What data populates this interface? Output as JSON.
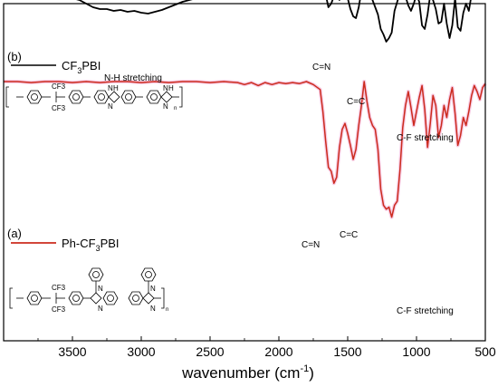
{
  "chart_data": {
    "type": "line",
    "title": "",
    "xlabel": "wavenumber (cm",
    "xlabel_sup": "-1",
    "xlabel_tail": ")",
    "ylabel": "",
    "xlim": [
      4000,
      500
    ],
    "x_reversed": true,
    "y_ticks_shown": false,
    "grid": false,
    "x_ticks": [
      3500,
      3000,
      2500,
      2000,
      1500,
      1000,
      500
    ],
    "series": [
      {
        "name": "CF3PBI",
        "panel_label": "(b)",
        "legend_main": "CF",
        "legend_sub": "3",
        "legend_tail": "PBI",
        "color": "#000000",
        "x": [
          4000,
          3900,
          3800,
          3700,
          3600,
          3500,
          3450,
          3400,
          3350,
          3300,
          3250,
          3200,
          3150,
          3100,
          3050,
          3000,
          2950,
          2900,
          2850,
          2800,
          2700,
          2600,
          2500,
          2400,
          2300,
          2200,
          2100,
          2000,
          1900,
          1800,
          1750,
          1700,
          1680,
          1660,
          1640,
          1620,
          1600,
          1580,
          1560,
          1540,
          1520,
          1500,
          1480,
          1460,
          1440,
          1420,
          1400,
          1380,
          1360,
          1340,
          1320,
          1300,
          1280,
          1260,
          1240,
          1220,
          1200,
          1180,
          1160,
          1140,
          1120,
          1100,
          1080,
          1060,
          1040,
          1020,
          1000,
          980,
          960,
          940,
          920,
          900,
          880,
          860,
          840,
          820,
          800,
          780,
          760,
          740,
          720,
          700,
          680,
          660,
          640,
          620,
          600,
          580,
          560,
          540,
          520,
          500
        ],
        "y": [
          6,
          5.6,
          5.5,
          5.2,
          4.8,
          4.2,
          4.0,
          3.6,
          3.2,
          3.0,
          3.0,
          2.8,
          2.9,
          2.7,
          2.8,
          2.6,
          2.5,
          2.7,
          2.9,
          3.2,
          3.8,
          4.2,
          4.6,
          4.8,
          5.0,
          5.2,
          5.3,
          5.5,
          5.6,
          5.8,
          5.6,
          5.4,
          5.2,
          4.6,
          3.2,
          3.6,
          4.4,
          4.6,
          4.0,
          5.2,
          5.0,
          4.2,
          3.0,
          2.2,
          2.0,
          3.2,
          5.0,
          6.2,
          5.6,
          5.0,
          4.0,
          3.2,
          2.4,
          0.8,
          0.2,
          -0.6,
          -0.2,
          0.4,
          2.8,
          3.8,
          4.8,
          5.2,
          4.4,
          3.4,
          2.8,
          3.6,
          4.6,
          3.8,
          1.2,
          0.8,
          2.4,
          4.6,
          4.0,
          3.0,
          1.4,
          1.6,
          3.6,
          1.4,
          -0.2,
          1.2,
          4.2,
          1.0,
          0.6,
          2.6,
          3.6,
          2.8,
          4.6,
          5.6,
          4.4,
          5.2,
          4.8,
          4.2
        ]
      },
      {
        "name": "Ph-CF3PBI",
        "panel_label": "(a)",
        "legend_main": "Ph-CF",
        "legend_sub": "3",
        "legend_tail": "PBI",
        "color": "#cc2b1e",
        "x": [
          4000,
          3900,
          3800,
          3700,
          3600,
          3500,
          3400,
          3300,
          3200,
          3100,
          3000,
          2900,
          2800,
          2700,
          2600,
          2500,
          2400,
          2300,
          2250,
          2200,
          2150,
          2100,
          2050,
          2000,
          1950,
          1900,
          1850,
          1800,
          1750,
          1700,
          1680,
          1660,
          1640,
          1620,
          1600,
          1580,
          1560,
          1540,
          1520,
          1500,
          1480,
          1460,
          1440,
          1420,
          1400,
          1380,
          1360,
          1340,
          1320,
          1300,
          1280,
          1260,
          1240,
          1220,
          1200,
          1180,
          1160,
          1140,
          1120,
          1100,
          1080,
          1060,
          1040,
          1020,
          1000,
          980,
          960,
          940,
          920,
          900,
          880,
          860,
          840,
          820,
          800,
          780,
          760,
          740,
          720,
          700,
          680,
          660,
          640,
          620,
          600,
          580,
          560,
          540,
          520,
          500
        ],
        "y": [
          6.0,
          6.0,
          5.9,
          6.0,
          6.0,
          5.9,
          6.0,
          5.9,
          6.0,
          6.0,
          5.9,
          6.0,
          5.9,
          6.0,
          6.0,
          5.9,
          6.0,
          5.9,
          5.7,
          5.9,
          5.6,
          5.9,
          5.7,
          5.9,
          5.8,
          5.9,
          5.8,
          6.0,
          5.7,
          5.2,
          3.0,
          0.0,
          -2.6,
          -3.0,
          -4.2,
          -3.6,
          -0.6,
          1.2,
          1.8,
          0.8,
          -0.4,
          -1.8,
          -0.8,
          1.6,
          3.6,
          6.0,
          4.0,
          2.4,
          1.6,
          1.2,
          -0.8,
          -4.8,
          -6.4,
          -6.8,
          -6.6,
          -7.6,
          -6.4,
          -6.0,
          -2.8,
          1.4,
          3.6,
          5.0,
          3.4,
          1.6,
          3.0,
          4.4,
          5.6,
          3.2,
          -0.6,
          1.8,
          4.6,
          3.6,
          0.4,
          1.6,
          3.6,
          2.4,
          4.2,
          5.4,
          2.8,
          -0.4,
          0.6,
          2.4,
          1.6,
          3.0,
          4.6,
          5.6,
          5.0,
          4.2,
          5.4,
          5.8
        ]
      }
    ],
    "annotations": [
      {
        "text": "N-H stretching",
        "series": "CF3PBI"
      },
      {
        "text": "C=N",
        "series": "CF3PBI"
      },
      {
        "text": "C=C",
        "series": "CF3PBI"
      },
      {
        "text": "C-F stretching",
        "series": "CF3PBI"
      },
      {
        "text": "C=N",
        "series": "Ph-CF3PBI"
      },
      {
        "text": "C=C",
        "series": "Ph-CF3PBI"
      },
      {
        "text": "C-F stretching",
        "series": "Ph-CF3PBI"
      }
    ],
    "structures": {
      "top": {
        "h_labels": [
          "H",
          "H"
        ],
        "n_labels": [
          "N",
          "N",
          "N",
          "N"
        ],
        "cf3": [
          "CF3",
          "CF3"
        ],
        "repeat": "n"
      },
      "bottom": {
        "n_labels": [
          "N",
          "N",
          "N",
          "N"
        ],
        "cf3": [
          "CF3",
          "CF3"
        ],
        "repeat": "n"
      }
    }
  }
}
